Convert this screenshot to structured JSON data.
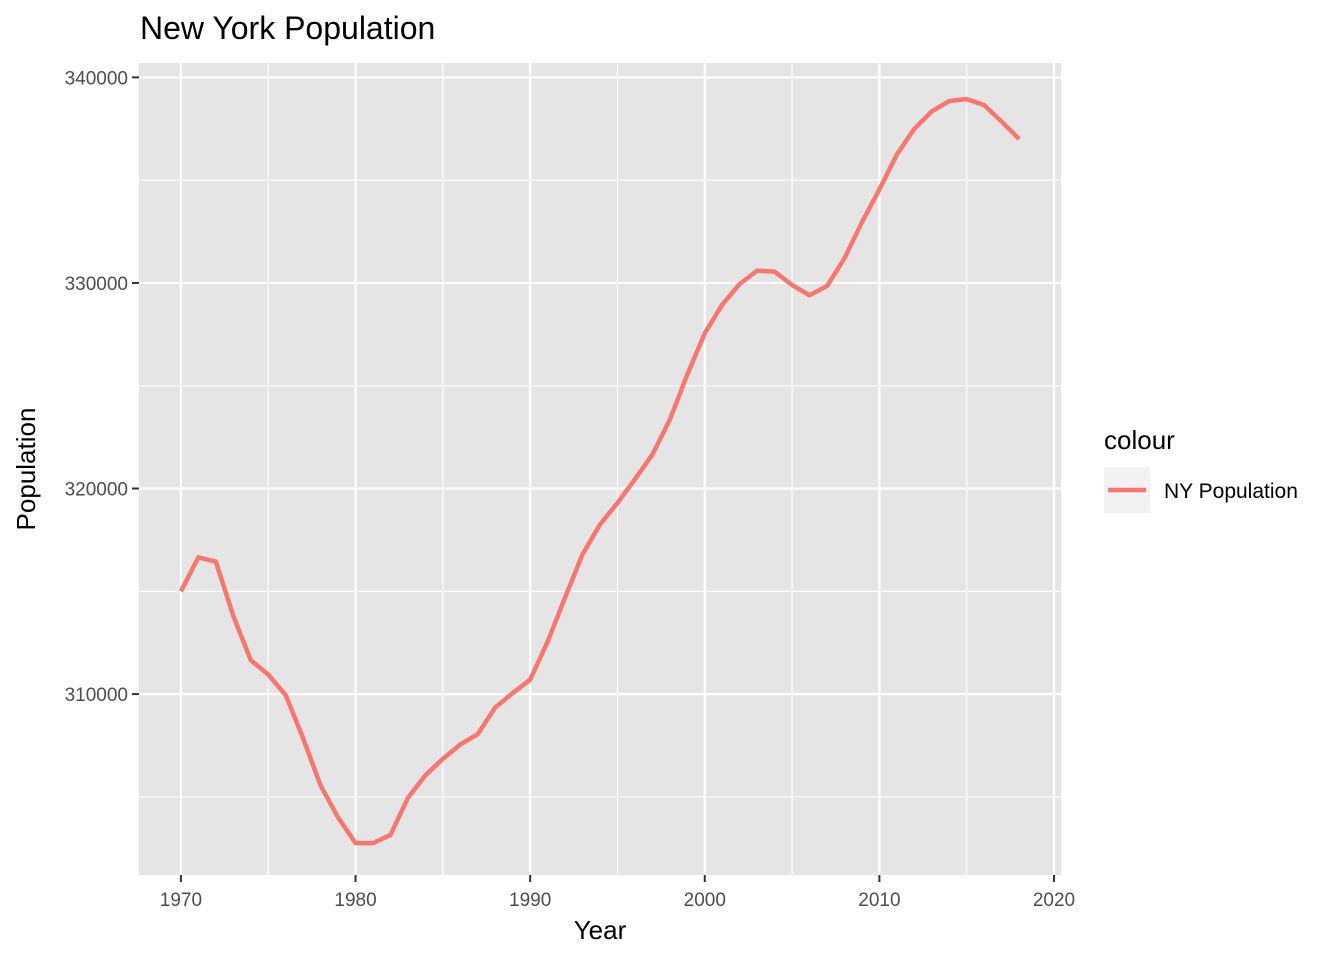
{
  "chart_data": {
    "type": "line",
    "title": "New York Population",
    "xlabel": "Year",
    "ylabel": "Population",
    "xlim": [
      1967.6,
      2020.4
    ],
    "ylim": [
      301200,
      340700
    ],
    "x_ticks": [
      1970,
      1980,
      1990,
      2000,
      2010,
      2020
    ],
    "x_tick_labels": [
      "1970",
      "1980",
      "1990",
      "2000",
      "2010",
      "2020"
    ],
    "y_ticks": [
      310000,
      320000,
      330000,
      340000
    ],
    "y_tick_labels": [
      "310000",
      "320000",
      "330000",
      "340000"
    ],
    "grid": true,
    "legend": {
      "title": "colour",
      "position": "right",
      "entries": [
        "NY Population"
      ]
    },
    "colors": {
      "panel_background": "#e5e5e5",
      "grid": "#ffffff",
      "series": "#f8766d",
      "legend_key_background": "#f2f2f2"
    },
    "series": [
      {
        "name": "NY Population",
        "x": [
          1970,
          1971,
          1972,
          1973,
          1974,
          1975,
          1976,
          1977,
          1978,
          1979,
          1980,
          1981,
          1982,
          1983,
          1984,
          1985,
          1986,
          1987,
          1988,
          1989,
          1990,
          1991,
          1992,
          1993,
          1994,
          1995,
          1996,
          1997,
          1998,
          1999,
          2000,
          2001,
          2002,
          2003,
          2004,
          2005,
          2006,
          2007,
          2008,
          2009,
          2010,
          2011,
          2012,
          2013,
          2014,
          2015,
          2016,
          2017,
          2018
        ],
        "values": [
          315000,
          316650,
          316450,
          313800,
          311650,
          310950,
          309950,
          307850,
          305550,
          304000,
          302750,
          302750,
          303150,
          304950,
          306050,
          306850,
          307550,
          308050,
          309350,
          310050,
          310700,
          312550,
          314700,
          316800,
          318250,
          319300,
          320450,
          321650,
          323350,
          325550,
          327550,
          328950,
          329950,
          330600,
          330550,
          329900,
          329400,
          329850,
          331200,
          332950,
          334550,
          336250,
          337500,
          338350,
          338850,
          338950,
          338650,
          337850,
          337000
        ]
      }
    ]
  }
}
